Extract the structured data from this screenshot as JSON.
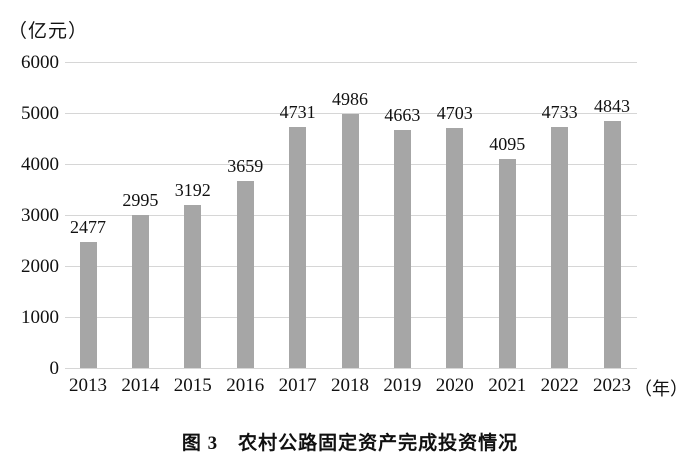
{
  "unit_label": "（亿元）",
  "year_suffix": "（年）",
  "caption": "图 3　农村公路固定资产完成投资情况",
  "chart_data": {
    "type": "bar",
    "title": "图 3 农村公路固定资产完成投资情况",
    "categories": [
      "2013",
      "2014",
      "2015",
      "2016",
      "2017",
      "2018",
      "2019",
      "2020",
      "2021",
      "2022",
      "2023"
    ],
    "values": [
      2477,
      2995,
      3192,
      3659,
      4731,
      4986,
      4663,
      4703,
      4095,
      4733,
      4843
    ],
    "xlabel": "（年）",
    "ylabel": "（亿元）",
    "ylim": [
      0,
      6000
    ],
    "yticks": [
      0,
      1000,
      2000,
      3000,
      4000,
      5000,
      6000
    ],
    "grid": true,
    "legend_position": "none",
    "bar_color": "#a6a6a6",
    "gridline_color": "#d6d6d6",
    "text_color": "#111111"
  }
}
